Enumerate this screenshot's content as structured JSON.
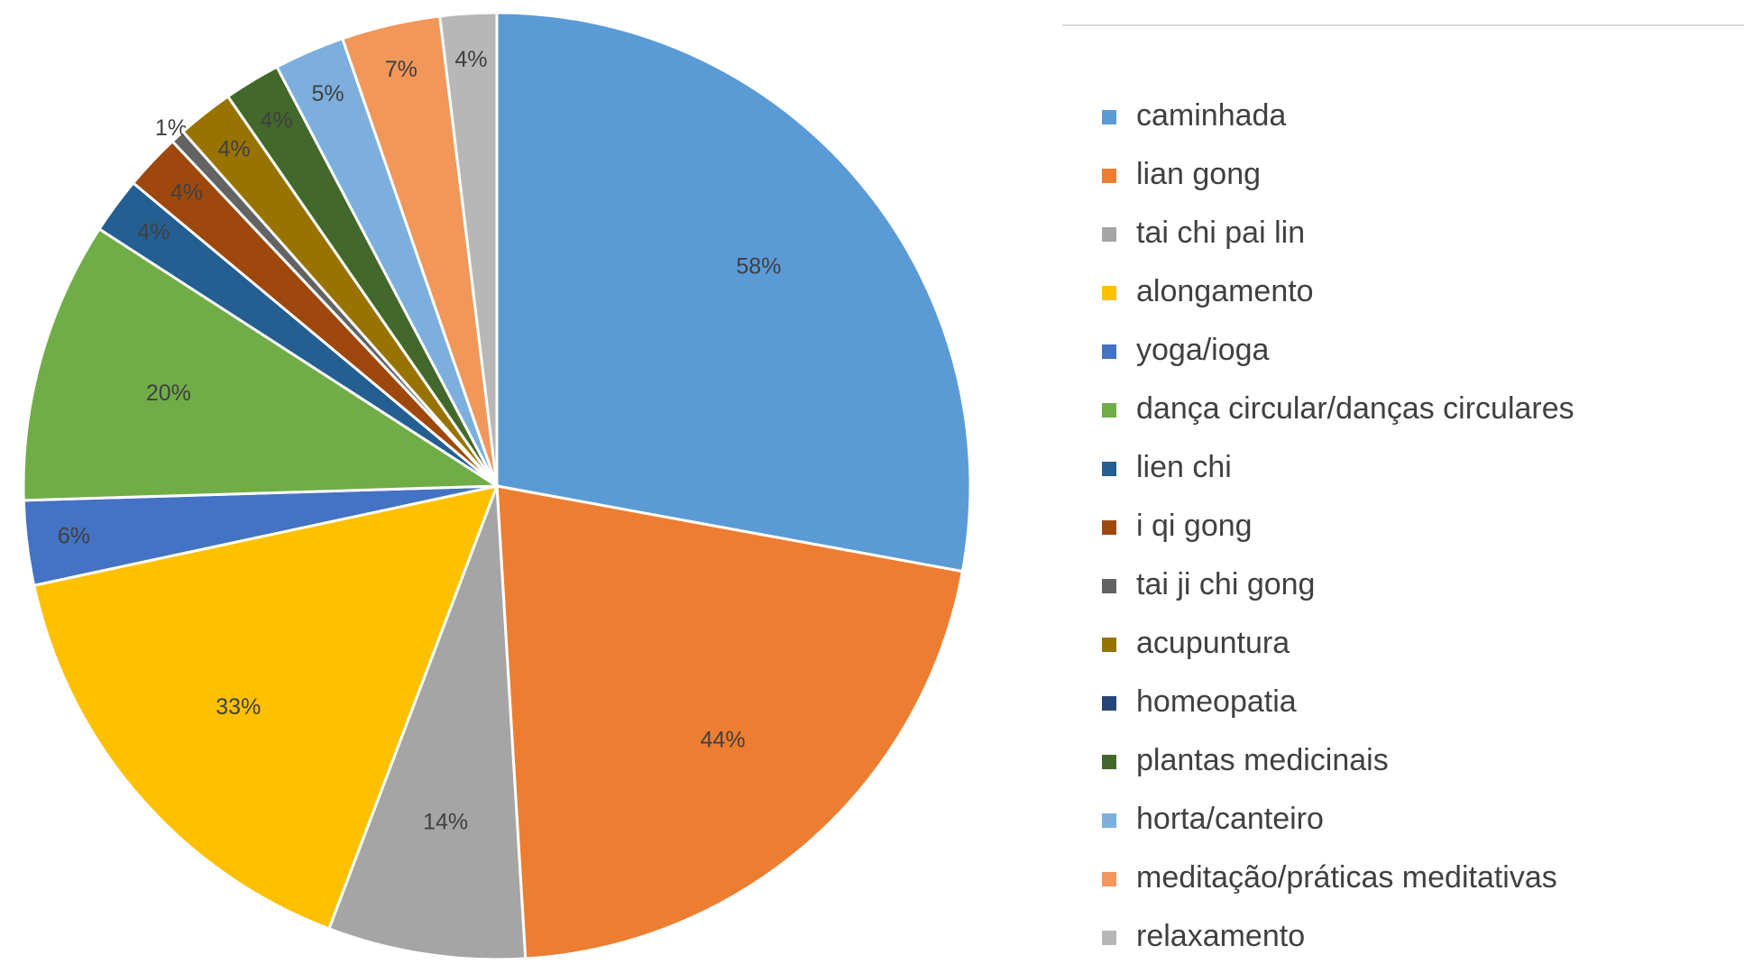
{
  "chart_data": {
    "type": "pie",
    "categories": [
      "caminhada",
      "lian gong",
      "tai chi pai lin",
      "alongamento",
      "yoga/ioga",
      "dança circular/danças circulares",
      "lien chi",
      "i qi gong",
      "tai ji chi gong",
      "acupuntura",
      "homeopatia",
      "plantas medicinais",
      "horta/canteiro",
      "meditação/práticas meditativas",
      "relaxamento"
    ],
    "values": [
      58,
      44,
      14,
      33,
      6,
      20,
      4,
      4,
      1,
      4,
      0,
      4,
      5,
      7,
      4
    ],
    "value_labels": [
      "58%",
      "44%",
      "14%",
      "33%",
      "6%",
      "20%",
      "4%",
      "4%",
      "1%",
      "4%",
      null,
      "4%",
      "5%",
      "7%",
      "4%"
    ],
    "colors": [
      "#5B9BD5",
      "#ED7D31",
      "#A5A5A5",
      "#FFC000",
      "#4472C4",
      "#70AD47",
      "#255E91",
      "#9E480E",
      "#636363",
      "#997300",
      "#264478",
      "#43682B",
      "#7CAFDD",
      "#F1975A",
      "#B7B7B7"
    ],
    "legend": "right"
  }
}
